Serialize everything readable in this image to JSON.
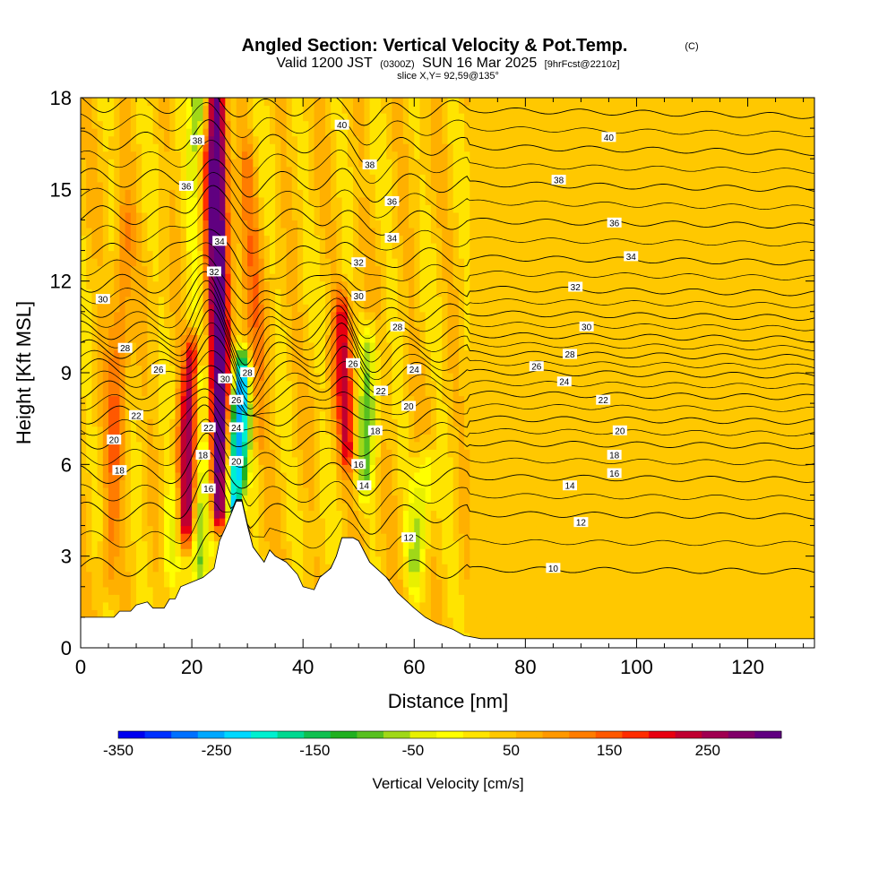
{
  "chart_data": {
    "type": "heatmap",
    "title": "Angled Section: Vertical Velocity & Pot.Temp.",
    "title_unit": "(C)",
    "subtitle_parts": [
      "Valid 1200 JST",
      "(0300Z)",
      "SUN 16 Mar 2025",
      "[9hrFcst@2210z]"
    ],
    "slice_label": "slice X,Y= 92,59@135°",
    "xlabel": "Distance [nm]",
    "ylabel": "Height [Kft MSL]",
    "xlim": [
      0,
      132
    ],
    "ylim": [
      0,
      18
    ],
    "x_ticks": [
      "0",
      "20",
      "40",
      "60",
      "80",
      "100",
      "120"
    ],
    "y_ticks": [
      "0",
      "3",
      "6",
      "9",
      "12",
      "15",
      "18"
    ],
    "colorbar": {
      "label": "Vertical Velocity [cm/s]",
      "range": [
        -350,
        325
      ],
      "step": 25,
      "tick_labels": [
        "-350",
        "-250",
        "-150",
        "-50",
        "50",
        "150",
        "250"
      ],
      "tick_values": [
        -350,
        -250,
        -150,
        -50,
        50,
        150,
        250
      ],
      "colors": [
        "#0000f0",
        "#0030ff",
        "#0070ff",
        "#00a8ff",
        "#00d8ff",
        "#00f0d0",
        "#00d890",
        "#10c050",
        "#20b020",
        "#58c020",
        "#a0d818",
        "#e8f000",
        "#ffff00",
        "#ffe400",
        "#ffc800",
        "#ffb000",
        "#ff9800",
        "#ff7c00",
        "#ff5800",
        "#ff2c00",
        "#e80010",
        "#c00030",
        "#a00050",
        "#800068",
        "#600080"
      ]
    },
    "terrain_profile": [
      [
        0,
        1.0
      ],
      [
        6,
        1.0
      ],
      [
        7,
        1.2
      ],
      [
        9,
        1.2
      ],
      [
        10,
        1.4
      ],
      [
        12,
        1.5
      ],
      [
        13,
        1.3
      ],
      [
        15,
        1.3
      ],
      [
        16,
        1.6
      ],
      [
        17,
        1.6
      ],
      [
        18,
        2.0
      ],
      [
        22,
        2.3
      ],
      [
        24,
        2.6
      ],
      [
        25,
        3.5
      ],
      [
        26,
        3.9
      ],
      [
        28,
        4.8
      ],
      [
        29,
        4.8
      ],
      [
        30,
        4.0
      ],
      [
        31,
        3.3
      ],
      [
        33,
        2.8
      ],
      [
        34,
        3.2
      ],
      [
        35,
        3.0
      ],
      [
        37,
        2.8
      ],
      [
        39,
        2.4
      ],
      [
        40,
        2.0
      ],
      [
        42,
        1.9
      ],
      [
        43,
        2.3
      ],
      [
        45,
        2.6
      ],
      [
        46,
        3.0
      ],
      [
        47,
        3.6
      ],
      [
        49,
        3.6
      ],
      [
        50,
        3.5
      ],
      [
        52,
        2.8
      ],
      [
        55,
        2.3
      ],
      [
        57,
        1.8
      ],
      [
        60,
        1.3
      ],
      [
        62,
        1.0
      ],
      [
        64,
        0.8
      ],
      [
        67,
        0.6
      ],
      [
        69,
        0.4
      ],
      [
        72,
        0.3
      ],
      [
        132,
        0.3
      ]
    ],
    "updrafts": [
      {
        "x": 25.0,
        "y_bottom": 4.5,
        "y_top": 18.0,
        "x_top": 24.5,
        "strength": 320
      },
      {
        "x": 19.0,
        "y_bottom": 4.0,
        "y_top": 9.5,
        "x_top": 20.0,
        "strength": 250
      },
      {
        "x": 21.0,
        "y_bottom": 10.0,
        "y_top": 16.0,
        "x_top": 22.0,
        "strength": 120
      },
      {
        "x": 48.0,
        "y_bottom": 6.5,
        "y_top": 11.0,
        "x_top": 47.0,
        "strength": 170
      },
      {
        "x": 5.0,
        "y_bottom": 2.5,
        "y_top": 14.0,
        "x_top": 8.0,
        "strength": 80
      },
      {
        "x": 32.0,
        "y_bottom": 7.0,
        "y_top": 16.0,
        "x_top": 30.0,
        "strength": 70
      }
    ],
    "downdrafts": [
      {
        "x": 27.5,
        "y_bottom": 4.5,
        "y_top": 9.0,
        "x_top": 29.0,
        "strength": -300
      },
      {
        "x": 21.5,
        "y_bottom": 2.5,
        "y_top": 18.0,
        "x_top": 21.0,
        "strength": -140
      },
      {
        "x": 51.0,
        "y_bottom": 5.5,
        "y_top": 10.0,
        "x_top": 52.0,
        "strength": -110
      },
      {
        "x": 60.0,
        "y_bottom": 2.5,
        "y_top": 6.0,
        "x_top": 62.0,
        "strength": -80
      },
      {
        "x": 16.0,
        "y_bottom": 2.5,
        "y_top": 5.0,
        "x_top": 16.5,
        "strength": -70
      }
    ],
    "theta_contours": {
      "units": "C",
      "levels": [
        10,
        12,
        14,
        16,
        18,
        20,
        22,
        24,
        26,
        28,
        30,
        32,
        34,
        36,
        38,
        40
      ],
      "heights_far_field": [
        2.5,
        4.3,
        5.5,
        6.6,
        7.4,
        8.2,
        8.9,
        9.5,
        10.1,
        10.8,
        11.6,
        12.6,
        13.8,
        15.0,
        16.2,
        17.4
      ]
    },
    "contour_labels": [
      {
        "text": "10",
        "x": 85,
        "y": 2.6
      },
      {
        "text": "12",
        "x": 90,
        "y": 4.1
      },
      {
        "text": "12",
        "x": 59,
        "y": 3.6
      },
      {
        "text": "14",
        "x": 88,
        "y": 5.3
      },
      {
        "text": "14",
        "x": 51,
        "y": 5.3
      },
      {
        "text": "16",
        "x": 96,
        "y": 5.7
      },
      {
        "text": "16",
        "x": 50,
        "y": 6.0
      },
      {
        "text": "16",
        "x": 23,
        "y": 5.2
      },
      {
        "text": "18",
        "x": 96,
        "y": 6.3
      },
      {
        "text": "18",
        "x": 53,
        "y": 7.1
      },
      {
        "text": "18",
        "x": 22,
        "y": 6.3
      },
      {
        "text": "18",
        "x": 7,
        "y": 5.8
      },
      {
        "text": "20",
        "x": 97,
        "y": 7.1
      },
      {
        "text": "20",
        "x": 59,
        "y": 7.9
      },
      {
        "text": "20",
        "x": 28,
        "y": 6.1
      },
      {
        "text": "20",
        "x": 6,
        "y": 6.8
      },
      {
        "text": "22",
        "x": 94,
        "y": 8.1
      },
      {
        "text": "22",
        "x": 54,
        "y": 8.4
      },
      {
        "text": "22",
        "x": 23,
        "y": 7.2
      },
      {
        "text": "22",
        "x": 10,
        "y": 7.6
      },
      {
        "text": "24",
        "x": 87,
        "y": 8.7
      },
      {
        "text": "24",
        "x": 60,
        "y": 9.1
      },
      {
        "text": "24",
        "x": 28,
        "y": 7.2
      },
      {
        "text": "26",
        "x": 82,
        "y": 9.2
      },
      {
        "text": "26",
        "x": 49,
        "y": 9.3
      },
      {
        "text": "26",
        "x": 28,
        "y": 8.1
      },
      {
        "text": "26",
        "x": 14,
        "y": 9.1
      },
      {
        "text": "28",
        "x": 88,
        "y": 9.6
      },
      {
        "text": "28",
        "x": 57,
        "y": 10.5
      },
      {
        "text": "28",
        "x": 30,
        "y": 9.0
      },
      {
        "text": "28",
        "x": 8,
        "y": 9.8
      },
      {
        "text": "30",
        "x": 91,
        "y": 10.5
      },
      {
        "text": "30",
        "x": 50,
        "y": 11.5
      },
      {
        "text": "30",
        "x": 26,
        "y": 8.8
      },
      {
        "text": "30",
        "x": 4,
        "y": 11.4
      },
      {
        "text": "32",
        "x": 89,
        "y": 11.8
      },
      {
        "text": "32",
        "x": 50,
        "y": 12.6
      },
      {
        "text": "32",
        "x": 24,
        "y": 12.3
      },
      {
        "text": "34",
        "x": 99,
        "y": 12.8
      },
      {
        "text": "34",
        "x": 56,
        "y": 13.4
      },
      {
        "text": "34",
        "x": 25,
        "y": 13.3
      },
      {
        "text": "36",
        "x": 96,
        "y": 13.9
      },
      {
        "text": "36",
        "x": 56,
        "y": 14.6
      },
      {
        "text": "36",
        "x": 19,
        "y": 15.1
      },
      {
        "text": "38",
        "x": 86,
        "y": 15.3
      },
      {
        "text": "38",
        "x": 52,
        "y": 15.8
      },
      {
        "text": "38",
        "x": 21,
        "y": 16.6
      },
      {
        "text": "40",
        "x": 95,
        "y": 16.7
      },
      {
        "text": "40",
        "x": 47,
        "y": 17.1
      }
    ],
    "grid": false,
    "legend_position": "bottom"
  }
}
